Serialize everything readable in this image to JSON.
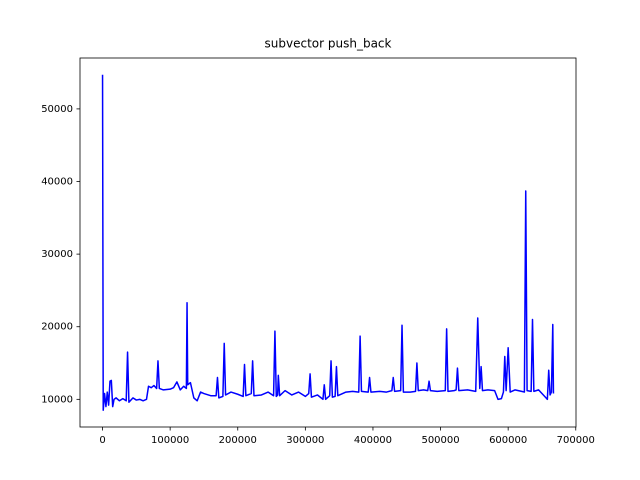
{
  "chart_data": {
    "type": "line",
    "title": "subvector push_back",
    "x": [
      0,
      1000,
      3000,
      5000,
      7000,
      9000,
      11000,
      13000,
      15000,
      17000,
      20000,
      25000,
      30000,
      35000,
      37000,
      39000,
      45000,
      50000,
      55000,
      60000,
      65000,
      68000,
      72000,
      76000,
      80000,
      82000,
      84000,
      90000,
      100000,
      105000,
      110000,
      115000,
      120000,
      124000,
      125000,
      126000,
      130000,
      135000,
      140000,
      145000,
      150000,
      160000,
      168000,
      170000,
      172000,
      178000,
      180000,
      182000,
      190000,
      200000,
      208000,
      210000,
      212000,
      220000,
      222000,
      224000,
      235000,
      245000,
      253000,
      255000,
      257000,
      259000,
      260000,
      262000,
      270000,
      280000,
      290000,
      300000,
      305000,
      307000,
      309000,
      318000,
      326000,
      328000,
      330000,
      336000,
      338000,
      340000,
      344000,
      346000,
      348000,
      360000,
      370000,
      379000,
      381000,
      383000,
      393000,
      395000,
      397000,
      410000,
      420000,
      428000,
      430000,
      432000,
      441000,
      443000,
      445000,
      455000,
      463000,
      465000,
      467000,
      475000,
      481000,
      483000,
      485000,
      495000,
      507000,
      509000,
      511000,
      520000,
      523000,
      525000,
      527000,
      540000,
      552000,
      555000,
      558000,
      560000,
      562000,
      570000,
      580000,
      585000,
      590000,
      593000,
      595000,
      597000,
      600000,
      603000,
      610000,
      620000,
      624000,
      626000,
      628000,
      634000,
      636000,
      638000,
      645000,
      655000,
      658000,
      660000,
      662000,
      664000,
      666000,
      667000
    ],
    "series": [
      {
        "color": "#0000ff",
        "values": [
          54700,
          8500,
          10800,
          9000,
          11000,
          9200,
          12500,
          12600,
          9000,
          10000,
          10200,
          9800,
          10100,
          9800,
          16500,
          9600,
          10200,
          9900,
          10000,
          9800,
          10000,
          11800,
          11600,
          11900,
          11500,
          15300,
          11500,
          11300,
          11400,
          11600,
          12400,
          11300,
          11800,
          11500,
          23300,
          12000,
          12300,
          10200,
          9800,
          11000,
          10800,
          10500,
          10500,
          13000,
          10200,
          10400,
          17700,
          10600,
          11000,
          10700,
          10400,
          14800,
          10500,
          10800,
          15300,
          10500,
          10600,
          11000,
          10500,
          19400,
          10400,
          10600,
          13300,
          10500,
          11200,
          10600,
          11000,
          10400,
          10800,
          13500,
          10300,
          10600,
          10000,
          12000,
          10000,
          10500,
          15300,
          10300,
          10400,
          14500,
          10500,
          11000,
          11100,
          11000,
          18700,
          11100,
          11000,
          13000,
          11000,
          11100,
          11000,
          11200,
          13000,
          11100,
          11200,
          20200,
          11000,
          11000,
          11100,
          15000,
          11200,
          11300,
          11200,
          12500,
          11200,
          11100,
          11200,
          19700,
          11100,
          11200,
          11300,
          14300,
          11200,
          11300,
          11100,
          21200,
          11500,
          14500,
          11200,
          11300,
          11200,
          10000,
          10100,
          11000,
          15900,
          11200,
          17100,
          11000,
          11300,
          11100,
          11000,
          38700,
          11200,
          11100,
          21000,
          11100,
          11300,
          10300,
          10000,
          14000,
          10600,
          11000,
          20300,
          10800
        ]
      }
    ],
    "xlim": [
      -33350,
      700350
    ],
    "xticks": [
      0,
      100000,
      200000,
      300000,
      400000,
      500000,
      600000,
      700000
    ],
    "ylim": [
      6190,
      57010
    ],
    "yticks": [
      10000,
      20000,
      30000,
      40000,
      50000
    ]
  }
}
